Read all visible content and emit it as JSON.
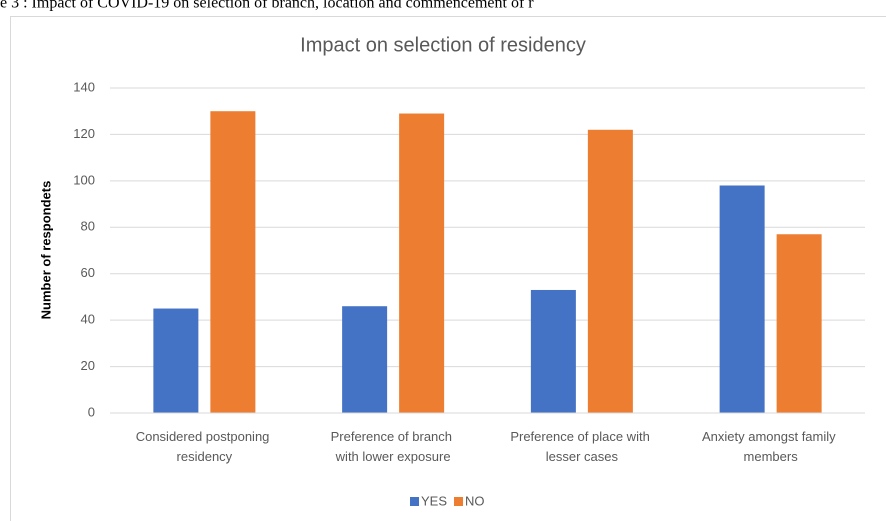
{
  "caption": "e 3 : Impact of COVID-19 on selection of branch, location and commencement of r",
  "chart_data": {
    "type": "bar",
    "title": "Impact on selection of residency",
    "y_label": "Number  of respondets",
    "categories": [
      "Considered postponing residency",
      "Preference of branch with lower exposure",
      "Preference of place with lesser cases",
      "Anxiety amongst family members"
    ],
    "series": [
      {
        "name": "YES",
        "color": "#4472c4",
        "values": [
          45,
          46,
          53,
          98
        ]
      },
      {
        "name": "NO",
        "color": "#ed7d31",
        "values": [
          130,
          129,
          122,
          77
        ]
      }
    ],
    "ylim": [
      0,
      140
    ],
    "yticks": [
      0,
      20,
      40,
      60,
      80,
      100,
      120,
      140
    ],
    "grid": true,
    "legend": "bottom"
  }
}
